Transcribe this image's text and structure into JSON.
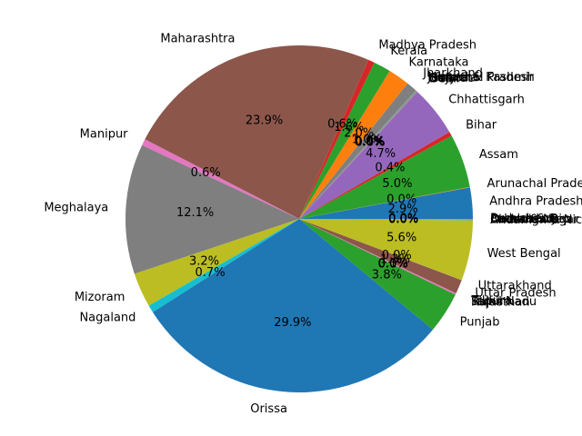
{
  "chart_data": {
    "type": "pie",
    "title": "",
    "start_angle_deg": 0,
    "direction": "counterclockwise",
    "label_values_format": "percent_one_decimal",
    "slices": [
      {
        "label": "Andhra Pradesh",
        "value": 2.9,
        "pct_label": "2.9%",
        "color": "#1f77b4"
      },
      {
        "label": "Arunachal Pradesh",
        "value": 0.05,
        "pct_label": "0.0%",
        "color": "#ff7f0e"
      },
      {
        "label": "Assam",
        "value": 5.0,
        "pct_label": "5.0%",
        "color": "#2ca02c"
      },
      {
        "label": "Bihar",
        "value": 0.4,
        "pct_label": "0.4%",
        "color": "#d62728"
      },
      {
        "label": "Chhattisgarh",
        "value": 4.7,
        "pct_label": "4.7%",
        "color": "#9467bd"
      },
      {
        "label": "Delhi",
        "value": 0.02,
        "pct_label": "0.0%",
        "color": "#8c564b"
      },
      {
        "label": "Goa",
        "value": 0.02,
        "pct_label": "0.0%",
        "color": "#e377c2"
      },
      {
        "label": "Gujarat",
        "value": 0.1,
        "pct_label": "0.1%",
        "color": "#7f7f7f"
      },
      {
        "label": "Haryana",
        "value": 0.02,
        "pct_label": "0.0%",
        "color": "#bcbd22"
      },
      {
        "label": "Himachal Pradesh",
        "value": 0.02,
        "pct_label": "0.0%",
        "color": "#17becf"
      },
      {
        "label": "Jammu & Kashmir",
        "value": 0.02,
        "pct_label": "0.0%",
        "color": "#1f77b4"
      },
      {
        "label": "Jharkhand",
        "value": 1.0,
        "pct_label": "1.0%",
        "color": "#7f7f7f"
      },
      {
        "label": "Karnataka",
        "value": 2.0,
        "pct_label": "2.0%",
        "color": "#ff7f0e"
      },
      {
        "label": "Kerala",
        "value": 1.6,
        "pct_label": "1.6%",
        "color": "#2ca02c"
      },
      {
        "label": "Madhya Pradesh",
        "value": 0.6,
        "pct_label": "0.6%",
        "color": "#d62728"
      },
      {
        "label": "Maharashtra",
        "value": 23.9,
        "pct_label": "23.9%",
        "color": "#8c564b"
      },
      {
        "label": "Manipur",
        "value": 0.6,
        "pct_label": "0.6%",
        "color": "#e377c2"
      },
      {
        "label": "Meghalaya",
        "value": 12.1,
        "pct_label": "12.1%",
        "color": "#7f7f7f"
      },
      {
        "label": "Mizoram",
        "value": 3.2,
        "pct_label": "3.2%",
        "color": "#bcbd22"
      },
      {
        "label": "Nagaland",
        "value": 0.7,
        "pct_label": "0.7%",
        "color": "#17becf"
      },
      {
        "label": "Orissa",
        "value": 29.9,
        "pct_label": "29.9%",
        "color": "#1f77b4"
      },
      {
        "label": "Punjab",
        "value": 3.8,
        "pct_label": "3.8%",
        "color": "#2ca02c"
      },
      {
        "label": "Rajasthan",
        "value": 0.02,
        "pct_label": "0.0%",
        "color": "#2ca02c"
      },
      {
        "label": "Sikkim",
        "value": 0.02,
        "pct_label": "0.0%",
        "color": "#d62728"
      },
      {
        "label": "Tamil Nadu",
        "value": 0.02,
        "pct_label": "0.0%",
        "color": "#9467bd"
      },
      {
        "label": "Tripura",
        "value": 0.1,
        "pct_label": "0.1%",
        "color": "#e377c2"
      },
      {
        "label": "Uttar Pradesh",
        "value": 1.3,
        "pct_label": "1.3%",
        "color": "#8c564b"
      },
      {
        "label": "Uttarakhand",
        "value": 0.02,
        "pct_label": "0.0%",
        "color": "#7f7f7f"
      },
      {
        "label": "West Bengal",
        "value": 5.6,
        "pct_label": "5.6%",
        "color": "#bcbd22"
      },
      {
        "label": "Andaman & Nicobar Islands",
        "value": 0.02,
        "pct_label": "0.0%",
        "color": "#17becf"
      },
      {
        "label": "Chandigarh",
        "value": 0.02,
        "pct_label": "0.0%",
        "color": "#1f77b4"
      },
      {
        "label": "Dadra & Nagar Haveli",
        "value": 0.02,
        "pct_label": "0.0%",
        "color": "#ff7f0e"
      },
      {
        "label": "Daman & Diu",
        "value": 0.02,
        "pct_label": "0.0%",
        "color": "#2ca02c"
      },
      {
        "label": "Lakshadweep",
        "value": 0.02,
        "pct_label": "0.0%",
        "color": "#d62728"
      },
      {
        "label": "Puducherry",
        "value": 0.02,
        "pct_label": "0.0%",
        "color": "#9467bd"
      }
    ]
  }
}
